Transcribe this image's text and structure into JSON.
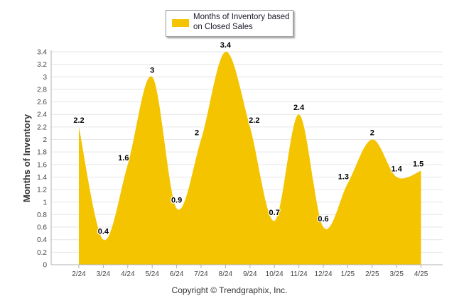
{
  "chart_data": {
    "type": "area",
    "categories": [
      "2/24",
      "3/24",
      "4/24",
      "5/24",
      "6/24",
      "7/24",
      "8/24",
      "9/24",
      "10/24",
      "11/24",
      "12/24",
      "1/25",
      "2/25",
      "3/25",
      "4/25"
    ],
    "series": [
      {
        "name": "Months of Inventory based on Closed Sales",
        "values": [
          2.2,
          0.4,
          1.6,
          3,
          0.9,
          2,
          3.4,
          2.2,
          0.7,
          2.4,
          0.6,
          1.3,
          2,
          1.4,
          1.5
        ],
        "labels": [
          "2.2",
          "0.4",
          "1.6",
          "3",
          "0.9",
          "2",
          "3.4",
          "2.2",
          "0.7",
          "2.4",
          "0.6",
          "1.3",
          "2",
          "1.4",
          "1.5"
        ]
      }
    ],
    "ylabel": "Months of Inventory",
    "xlabel": "",
    "ylim": [
      0,
      3.4
    ],
    "yticks": [
      "0",
      "0.2",
      "0.4",
      "0.6",
      "0.8",
      "1",
      "1.2",
      "1.4",
      "1.6",
      "1.8",
      "2",
      "2.2",
      "2.4",
      "2.6",
      "2.8",
      "3",
      "3.2",
      "3.4"
    ],
    "grid": true,
    "legend_position": "top-center",
    "colors": {
      "fill": "#F5C400",
      "grid": "#e6e6e6",
      "axis": "#b0b0b0"
    }
  },
  "legend": {
    "label": "Months of Inventory based on Closed Sales"
  },
  "footer": {
    "copyright": "Copyright © Trendgraphix, Inc."
  }
}
